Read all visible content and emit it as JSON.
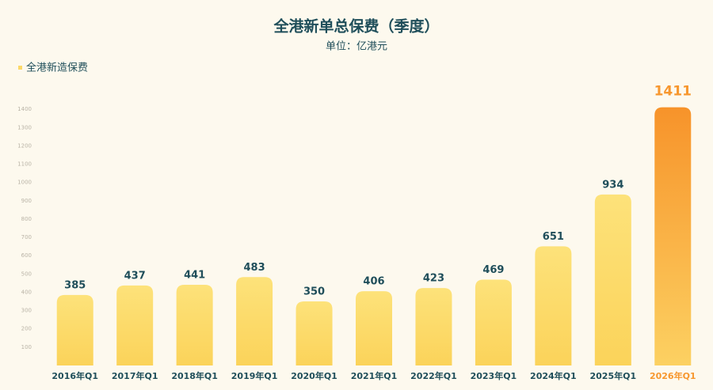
{
  "chart_data": {
    "type": "bar",
    "title": "全港新单总保费（季度）",
    "subtitle": "单位：亿港元",
    "legend_label": "全港新造保费",
    "categories": [
      "2016年Q1",
      "2017年Q1",
      "2018年Q1",
      "2019年Q1",
      "2020年Q1",
      "2021年Q1",
      "2022年Q1",
      "2023年Q1",
      "2024年Q1",
      "2025年Q1",
      "2026年Q1"
    ],
    "values": [
      385,
      437,
      441,
      483,
      350,
      406,
      423,
      469,
      651,
      934,
      1411
    ],
    "color": "#fcd968",
    "highlight_color": "#f7972e",
    "highlight_index": 10,
    "ylim": [
      0,
      1500
    ],
    "yticks": [
      100,
      200,
      300,
      400,
      500,
      600,
      700,
      800,
      900,
      1000,
      1100,
      1200,
      1300,
      1400
    ],
    "grid": false
  }
}
